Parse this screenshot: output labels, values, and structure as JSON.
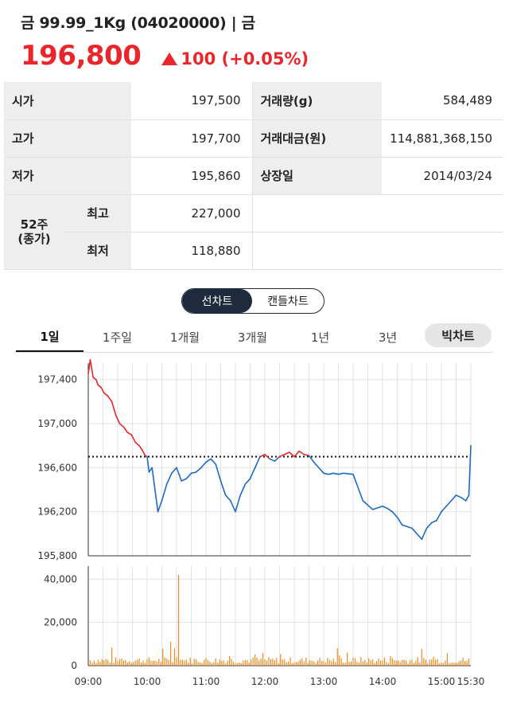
{
  "header": {
    "title": "금 99.99_1Kg (04020000) | 금",
    "price": "196,800",
    "change": "100 (+0.05%)"
  },
  "info": {
    "open_label": "시가",
    "open_value": "197,500",
    "high_label": "고가",
    "high_value": "197,700",
    "low_label": "저가",
    "low_value": "195,860",
    "volume_label": "거래량(g)",
    "volume_value": "584,489",
    "amount_label": "거래대금(원)",
    "amount_value": "114,881,368,150",
    "listing_label": "상장일",
    "listing_value": "2014/03/24",
    "w52_label_line1": "52주",
    "w52_label_line2": "(종가)",
    "w52_high_label": "최고",
    "w52_high_value": "227,000",
    "w52_low_label": "최저",
    "w52_low_value": "118,880"
  },
  "chart_toggle": {
    "line_label": "선차트",
    "candle_label": "캔들차트",
    "selected": "선차트"
  },
  "period_tabs": [
    "1일",
    "1주일",
    "1개월",
    "3개월",
    "1년",
    "3년"
  ],
  "big_chart_label": "빅차트",
  "colors": {
    "up": "#e8262b",
    "down": "#1e6ac8",
    "volume": "#f08a1c"
  },
  "chart_data": [
    {
      "type": "line",
      "title": "",
      "y_ticks": [
        195800,
        196200,
        196600,
        197000,
        197400
      ],
      "ylim": [
        195800,
        197550
      ],
      "xlim": [
        "09:00",
        "15:30"
      ],
      "reference_line": 196700,
      "series": [
        {
          "x": [
            "09:00",
            "09:02",
            "09:05",
            "09:08",
            "09:10",
            "09:13",
            "09:16",
            "09:20",
            "09:24",
            "09:28",
            "09:32",
            "09:36",
            "09:40",
            "09:44",
            "09:48",
            "09:52",
            "09:55",
            "09:58",
            "10:00",
            "10:02",
            "10:05",
            "10:08",
            "10:11",
            "10:15",
            "10:20",
            "10:25",
            "10:30",
            "10:35",
            "10:40",
            "10:45",
            "10:50",
            "10:55",
            "11:00",
            "11:05",
            "11:10",
            "11:15",
            "11:20",
            "11:25",
            "11:30",
            "11:35",
            "11:40",
            "11:45",
            "11:50",
            "11:55",
            "12:00",
            "12:05",
            "12:10",
            "12:15",
            "12:20",
            "12:25",
            "12:30",
            "12:35",
            "12:40",
            "12:45",
            "12:50",
            "12:55",
            "13:00",
            "13:05",
            "13:10",
            "13:15",
            "13:20",
            "13:30",
            "13:40",
            "13:50",
            "14:00",
            "14:05",
            "14:10",
            "14:15",
            "14:20",
            "14:30",
            "14:40",
            "14:45",
            "14:50",
            "14:55",
            "15:00",
            "15:05",
            "15:10",
            "15:15",
            "15:20",
            "15:25",
            "15:28",
            "15:30"
          ],
          "values": [
            197450,
            197580,
            197420,
            197400,
            197350,
            197330,
            197280,
            197250,
            197200,
            197080,
            197000,
            196970,
            196920,
            196900,
            196830,
            196800,
            196760,
            196710,
            196700,
            196560,
            196600,
            196400,
            196200,
            196300,
            196450,
            196550,
            196600,
            196480,
            196500,
            196550,
            196560,
            196600,
            196650,
            196680,
            196630,
            196480,
            196350,
            196300,
            196200,
            196350,
            196450,
            196500,
            196600,
            196700,
            196720,
            196680,
            196660,
            196700,
            196720,
            196740,
            196700,
            196750,
            196720,
            196710,
            196650,
            196600,
            196550,
            196540,
            196550,
            196540,
            196550,
            196540,
            196300,
            196220,
            196250,
            196230,
            196200,
            196150,
            196080,
            196050,
            195950,
            196050,
            196100,
            196120,
            196200,
            196250,
            196300,
            196350,
            196330,
            196300,
            196350,
            196800
          ]
        }
      ]
    },
    {
      "type": "bar",
      "title": "",
      "y_ticks": [
        0,
        20000,
        40000
      ],
      "ylim": [
        0,
        46000
      ],
      "x_ticks": [
        "09:00",
        "10:00",
        "11:00",
        "12:00",
        "13:00",
        "14:00",
        "15:00",
        "15:30"
      ],
      "peaks": [
        {
          "x": "10:24",
          "value": 11000
        },
        {
          "x": "10:28",
          "value": 8000
        },
        {
          "x": "10:32",
          "value": 42000
        },
        {
          "x": "14:45",
          "value": 8000
        }
      ],
      "baseline_range": [
        1000,
        4000
      ]
    }
  ]
}
